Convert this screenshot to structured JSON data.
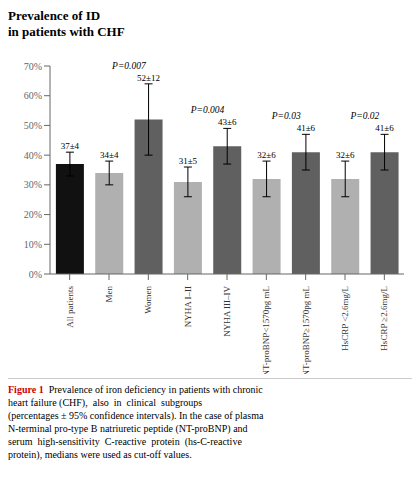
{
  "chart_data": {
    "type": "bar",
    "title": "Prevalence of ID\nin patients with CHF",
    "categories": [
      "All patients",
      "Men",
      "Women",
      "NYHA I–II",
      "NYHA III–IV",
      "NT-proBNP<1570pg mL",
      "NT-proBNP≥1570pg mL",
      "HsCRP <2.6mg/L",
      "HsCRP ≥2.6mg/L"
    ],
    "values": [
      37,
      34,
      52,
      31,
      43,
      32,
      41,
      32,
      41
    ],
    "errors": [
      4,
      4,
      12,
      5,
      6,
      6,
      6,
      6,
      6
    ],
    "value_labels": [
      "37±4",
      "34±4",
      "52±12",
      "31±5",
      "43±6",
      "32±6",
      "41±6",
      "32±6",
      "41±6"
    ],
    "data_labels": true,
    "colors": [
      "#111111",
      "#b0b0b0",
      "#606060",
      "#b0b0b0",
      "#606060",
      "#b0b0b0",
      "#606060",
      "#b0b0b0",
      "#606060"
    ],
    "ylim": [
      0,
      70
    ],
    "yticks": [
      {
        "value": 0,
        "label": "0%"
      },
      {
        "value": 10,
        "label": "10%"
      },
      {
        "value": 20,
        "label": "20%"
      },
      {
        "value": 30,
        "label": "30%"
      },
      {
        "value": 40,
        "label": "40%"
      },
      {
        "value": 50,
        "label": "50%"
      },
      {
        "value": 60,
        "label": "60%"
      },
      {
        "value": 70,
        "label": "70%"
      }
    ],
    "grid": false,
    "annotations": [
      {
        "text": "P=0.007",
        "between": [
          "Men",
          "Women"
        ]
      },
      {
        "text": "P=0.004",
        "between": [
          "NYHA I–II",
          "NYHA III–IV"
        ]
      },
      {
        "text": "P=0.03",
        "between": [
          "NT-proBNP<1570pg mL",
          "NT-proBNP≥1570pg mL"
        ]
      },
      {
        "text": "P=0.02",
        "between": [
          "HsCRP <2.6mg/L",
          "HsCRP ≥2.6mg/L"
        ]
      }
    ],
    "caption": {
      "label": "Figure 1",
      "color": "#cc0000",
      "text": "  Prevalence of iron deficiency in patients with chronic\nheart failure (CHF),  also  in  clinical  subgroups\n(percentages ± 95% confidence intervals). In the case of plasma\nN-terminal pro-type B natriuretic peptide (NT-proBNP) and\nserum  high-sensitivity  C-reactive  protein  (hs-C-reactive\nprotein), medians were used as cut-off values."
    }
  }
}
